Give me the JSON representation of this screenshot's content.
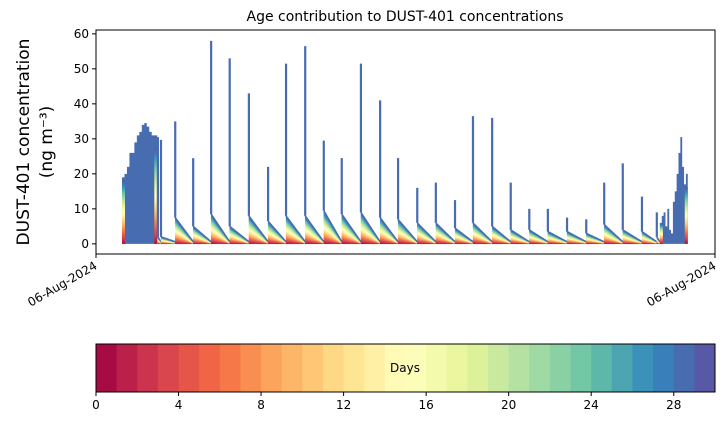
{
  "chart_data": {
    "type": "area",
    "title": "Age contribution to DUST-401 concentrations",
    "ylabel_line1": "DUST-401 concentration",
    "ylabel_line2": "(ng m⁻³)",
    "xlabel": "",
    "xlim": [
      0,
      100
    ],
    "ylim": [
      -2.9,
      61.1
    ],
    "yticks": [
      0,
      10,
      20,
      30,
      40,
      50,
      60
    ],
    "xticks": [
      {
        "t": 0,
        "label": "06-Aug-2024"
      },
      {
        "t": 100,
        "label": "06-Aug-2024"
      }
    ],
    "start_cluster": {
      "t": [
        4.2,
        4.6,
        5.0,
        5.4,
        5.8,
        6.2,
        6.6,
        7.0,
        7.4,
        7.8,
        8.2,
        8.6,
        9.0,
        9.4,
        9.9
      ],
      "values": [
        19,
        20,
        22,
        26,
        26,
        29,
        31,
        32,
        34,
        34.5,
        33.5,
        32,
        31,
        31,
        30.5
      ]
    },
    "spikes": [
      {
        "t": 10.0,
        "peak": 30.5,
        "base": 2
      },
      {
        "t": 10.5,
        "peak": 29.7,
        "base": 2
      },
      {
        "t": 12.8,
        "peak": 35,
        "base": 7.5
      },
      {
        "t": 15.7,
        "peak": 24.5,
        "base": 5
      },
      {
        "t": 18.6,
        "peak": 58,
        "base": 8.5
      },
      {
        "t": 21.6,
        "peak": 53,
        "base": 5
      },
      {
        "t": 24.7,
        "peak": 43,
        "base": 8
      },
      {
        "t": 27.8,
        "peak": 22,
        "base": 6.5
      },
      {
        "t": 30.7,
        "peak": 51.5,
        "base": 8
      },
      {
        "t": 33.8,
        "peak": 56.5,
        "base": 8
      },
      {
        "t": 36.8,
        "peak": 29.5,
        "base": 9.5
      },
      {
        "t": 39.7,
        "peak": 24.5,
        "base": 8.5
      },
      {
        "t": 42.8,
        "peak": 51.5,
        "base": 9
      },
      {
        "t": 45.9,
        "peak": 41,
        "base": 7.5
      },
      {
        "t": 48.8,
        "peak": 24.5,
        "base": 7
      },
      {
        "t": 51.9,
        "peak": 16,
        "base": 6
      },
      {
        "t": 54.9,
        "peak": 17.5,
        "base": 6
      },
      {
        "t": 58.0,
        "peak": 12.5,
        "base": 4.5
      },
      {
        "t": 60.9,
        "peak": 36.5,
        "base": 6
      },
      {
        "t": 64.0,
        "peak": 36,
        "base": 5
      },
      {
        "t": 67.0,
        "peak": 17.5,
        "base": 4
      },
      {
        "t": 70.0,
        "peak": 10,
        "base": 4
      },
      {
        "t": 73.0,
        "peak": 10,
        "base": 3.5
      },
      {
        "t": 76.1,
        "peak": 7.5,
        "base": 3.5
      },
      {
        "t": 79.2,
        "peak": 7,
        "base": 3
      },
      {
        "t": 82.1,
        "peak": 17.5,
        "base": 5.5
      },
      {
        "t": 85.1,
        "peak": 23,
        "base": 4
      },
      {
        "t": 88.2,
        "peak": 13.5,
        "base": 3.5
      },
      {
        "t": 90.6,
        "peak": 9,
        "base": 2
      }
    ],
    "end_cluster": {
      "t": [
        91.1,
        91.4,
        91.7,
        92.0,
        92.3,
        92.6,
        92.9,
        93.2,
        93.5,
        93.8,
        94.1,
        94.4,
        94.7,
        95.0,
        95.3,
        95.6
      ],
      "values": [
        6,
        8,
        9,
        5,
        10,
        4,
        3,
        12,
        15,
        20,
        26,
        30.5,
        22,
        17,
        20,
        18
      ]
    },
    "colorbar": {
      "label": "Days",
      "range": [
        0,
        30
      ],
      "n_colors": 30,
      "ticks": [
        0,
        4,
        8,
        12,
        16,
        20,
        24,
        28
      ],
      "colormap_anchors": [
        "#9e0142",
        "#d53e4f",
        "#f46d43",
        "#fdae61",
        "#fee08b",
        "#ffffbf",
        "#e6f598",
        "#abdda4",
        "#66c2a5",
        "#3288bd",
        "#5e4fa2"
      ]
    }
  }
}
